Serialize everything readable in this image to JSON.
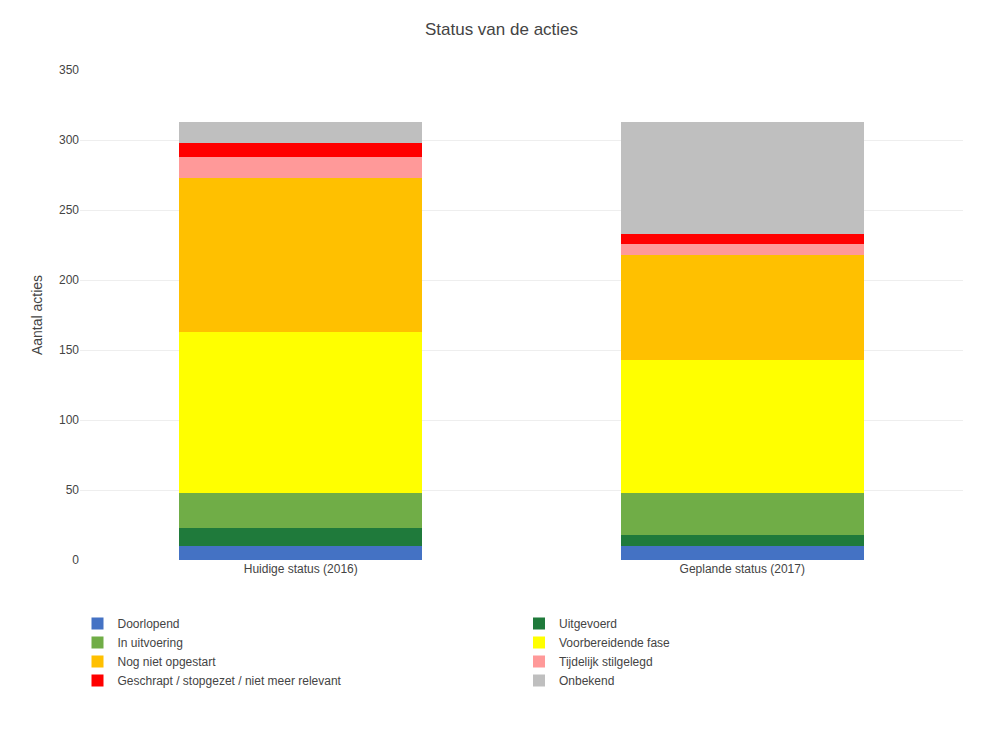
{
  "chart_data": {
    "type": "bar",
    "title": "Status van de acties",
    "categories": [
      "Huidige status (2016)",
      "Geplande status (2017)"
    ],
    "series": [
      {
        "name": "Doorlopend",
        "values": [
          10,
          10
        ],
        "color": "#4472C4"
      },
      {
        "name": "Uitgevoerd",
        "values": [
          13,
          8
        ],
        "color": "#1F7A3B"
      },
      {
        "name": "In uitvoering",
        "values": [
          25,
          30
        ],
        "color": "#70AD47"
      },
      {
        "name": "Voorbereidende fase",
        "values": [
          115,
          95
        ],
        "color": "#FFFF00"
      },
      {
        "name": "Nog niet opgestart",
        "values": [
          110,
          75
        ],
        "color": "#FFC000"
      },
      {
        "name": "Tijdelijk stilgelegd",
        "values": [
          15,
          8
        ],
        "color": "#FF9999"
      },
      {
        "name": "Geschrapt / stopgezet / niet meer relevant",
        "values": [
          10,
          7
        ],
        "color": "#FF0000"
      },
      {
        "name": "Onbekend",
        "values": [
          15,
          80
        ],
        "color": "#BFBFBF"
      }
    ],
    "ylabel": "Aantal acties",
    "ylim": [
      0,
      350
    ],
    "yticks": [
      0,
      50,
      100,
      150,
      200,
      250,
      300,
      350
    ],
    "stacked": true,
    "grid": true,
    "legend": "bottom"
  }
}
